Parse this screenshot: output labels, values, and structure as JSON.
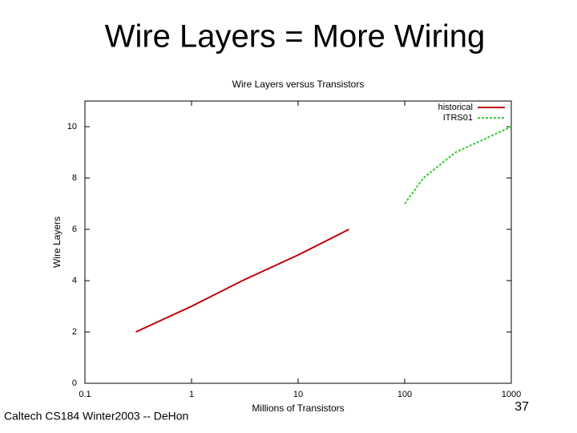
{
  "slide": {
    "title": "Wire Layers = More Wiring",
    "footer": "Caltech CS184 Winter2003 -- DeHon",
    "page_number": "37"
  },
  "chart_data": {
    "type": "line",
    "title": "Wire Layers versus Transistors",
    "x_label": "Millions of Transistors",
    "y_label": "Wire Layers",
    "x_scale": "log",
    "xlim": [
      0.1,
      1000
    ],
    "xticks": [
      0.1,
      1,
      10,
      100,
      1000
    ],
    "ylim": [
      0,
      11
    ],
    "yticks": [
      0,
      2,
      4,
      6,
      8,
      10
    ],
    "grid": false,
    "legend": "top-right",
    "series": [
      {
        "name": "historical",
        "color": "#c00000",
        "dash": false,
        "x": [
          0.3,
          1,
          3,
          10,
          30
        ],
        "values": [
          2,
          3,
          4,
          5,
          6
        ]
      },
      {
        "name": "ITRS01",
        "color": "#33cc33",
        "dash": true,
        "x": [
          100,
          150,
          300,
          1000
        ],
        "values": [
          7,
          8,
          9,
          10
        ]
      }
    ]
  }
}
